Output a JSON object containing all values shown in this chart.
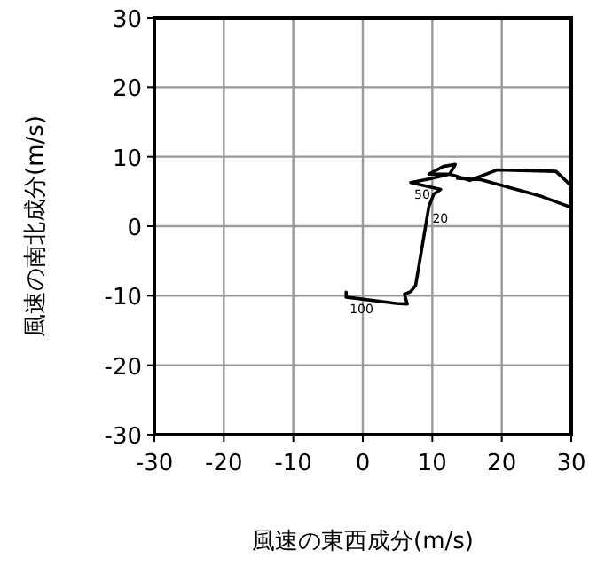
{
  "chart_data": {
    "type": "line",
    "xlabel": "風速の東西成分(m/s)",
    "ylabel": "風速の南北成分(m/s)",
    "xlim": [
      -30,
      30
    ],
    "ylim": [
      -30,
      30
    ],
    "xticks": [
      -30,
      -20,
      -10,
      0,
      10,
      20,
      30
    ],
    "yticks": [
      -30,
      -20,
      -10,
      0,
      10,
      20,
      30
    ],
    "grid": true,
    "series": [
      {
        "color": "#000000",
        "x": [
          -2.4,
          -2.4,
          4.8,
          6.4,
          6.0,
          6.9,
          7.6,
          9.5,
          10.2,
          11.2,
          6.9,
          9.5,
          12.5,
          9.5,
          11.6,
          13.3,
          12.5,
          15.4,
          19.3,
          27.8,
          30,
          30,
          25.7,
          17,
          13.6
        ],
        "values": [
          -9.5,
          -10.2,
          -11.1,
          -11.2,
          -9.8,
          -9.4,
          -8.5,
          2.8,
          4.6,
          5.3,
          6.3,
          6.8,
          7.5,
          7.5,
          8.6,
          8.9,
          7.5,
          6.6,
          8.1,
          7.9,
          5.8,
          2.7,
          4.3,
          6.7,
          6.9
        ]
      }
    ],
    "annotations": [
      {
        "text": "20",
        "x": 9.5,
        "y": 2.8
      },
      {
        "text": "50",
        "x": 6.9,
        "y": 6.3
      },
      {
        "text": "100",
        "x": -2.4,
        "y": -10.2
      }
    ]
  }
}
